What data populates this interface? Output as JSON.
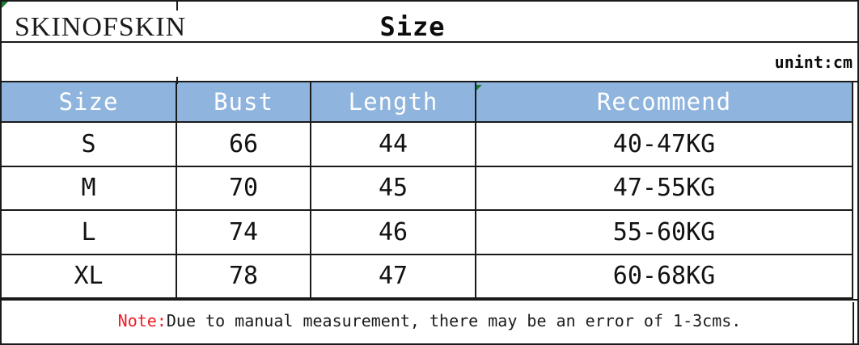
{
  "brand": "SKINOFSKIN",
  "title": "Size",
  "unit_label": "unint:cm",
  "table": {
    "headers": [
      "Size",
      "Bust",
      "Length",
      "Recommend"
    ],
    "rows": [
      [
        "S",
        "66",
        "44",
        "40-47KG"
      ],
      [
        "M",
        "70",
        "45",
        "47-55KG"
      ],
      [
        "L",
        "74",
        "46",
        "55-60KG"
      ],
      [
        "XL",
        "78",
        "47",
        "60-68KG"
      ]
    ]
  },
  "note": {
    "label": "Note:",
    "text": "Due to manual measurement, there may be an error of 1-3cms."
  },
  "icons": {
    "top_left_corner": "error-indicator-triangle-icon",
    "recommend_header_corner": "error-indicator-triangle-icon"
  },
  "colors": {
    "header_bg": "#8fb4de",
    "header_text": "#ffffff",
    "note_label": "#ed1c24",
    "body_text": "#141414",
    "border": "#1a1a1a",
    "error_indicator": "#1f7a33"
  }
}
